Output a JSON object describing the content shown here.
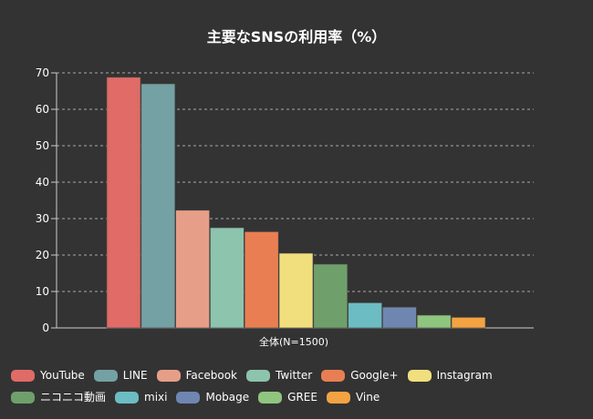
{
  "chart_data": {
    "type": "bar",
    "title": "主要なSNSの利用率（%）",
    "categories": [
      "全体(N=1500)"
    ],
    "ylim": [
      0,
      70
    ],
    "yticks": [
      0,
      10,
      20,
      30,
      40,
      50,
      60,
      70
    ],
    "grid": true,
    "legend_position": "bottom",
    "series": [
      {
        "name": "YouTube",
        "values": [
          68.8
        ],
        "color": "#e06b67"
      },
      {
        "name": "LINE",
        "values": [
          67.0
        ],
        "color": "#74a1a3"
      },
      {
        "name": "Facebook",
        "values": [
          32.3
        ],
        "color": "#e79e88"
      },
      {
        "name": "Twitter",
        "values": [
          27.5
        ],
        "color": "#8cc4ad"
      },
      {
        "name": "Google+",
        "values": [
          26.4
        ],
        "color": "#e97e53"
      },
      {
        "name": "Instagram",
        "values": [
          20.5
        ],
        "color": "#f0df7c"
      },
      {
        "name": "ニコニコ動画",
        "values": [
          17.5
        ],
        "color": "#6fa06b"
      },
      {
        "name": "mixi",
        "values": [
          6.9
        ],
        "color": "#6cbcc3"
      },
      {
        "name": "Mobage",
        "values": [
          5.7
        ],
        "color": "#6f86b0"
      },
      {
        "name": "GREE",
        "values": [
          3.5
        ],
        "color": "#8fc57e"
      },
      {
        "name": "Vine",
        "values": [
          2.9
        ],
        "color": "#f3a342"
      }
    ]
  }
}
